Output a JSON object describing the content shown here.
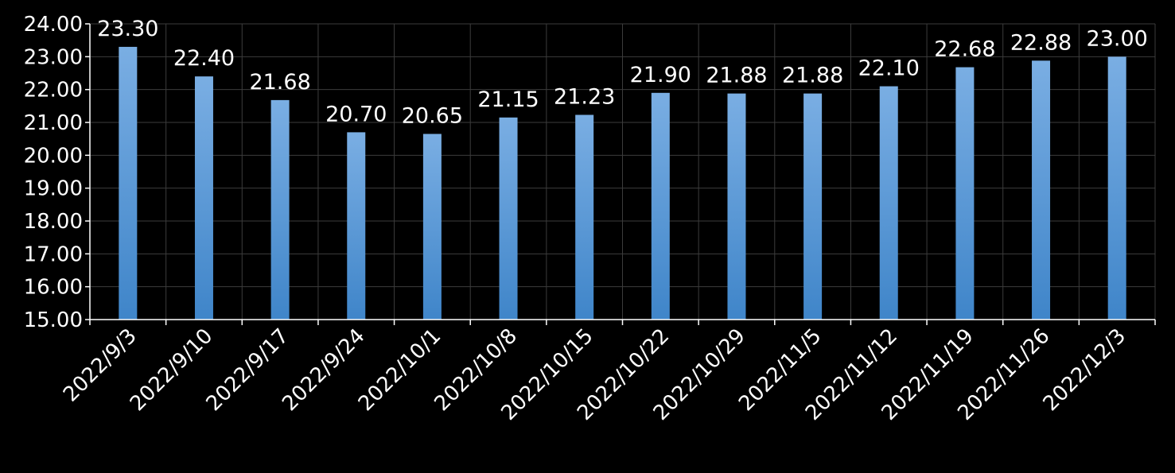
{
  "chart_data": {
    "type": "bar",
    "categories": [
      "2022/9/3",
      "2022/9/10",
      "2022/9/17",
      "2022/9/24",
      "2022/10/1",
      "2022/10/8",
      "2022/10/15",
      "2022/10/22",
      "2022/10/29",
      "2022/11/5",
      "2022/11/12",
      "2022/11/19",
      "2022/11/26",
      "2022/12/3"
    ],
    "series": [
      {
        "values": [
          23.3,
          22.4,
          21.68,
          20.7,
          20.65,
          21.15,
          21.23,
          21.9,
          21.88,
          21.88,
          22.1,
          22.68,
          22.88,
          23.0
        ],
        "labels": [
          "23.30",
          "22.40",
          "21.68",
          "20.70",
          "20.65",
          "21.15",
          "21.23",
          "21.90",
          "21.88",
          "21.88",
          "22.10",
          "22.68",
          "22.88",
          "23.00"
        ]
      }
    ],
    "ylim": [
      15,
      24
    ],
    "yticks": [
      "15.00",
      "16.00",
      "17.00",
      "18.00",
      "19.00",
      "20.00",
      "21.00",
      "22.00",
      "23.00",
      "24.00"
    ],
    "title": "",
    "xlabel": "",
    "ylabel": "",
    "grid": true,
    "legend": "none",
    "colors": {
      "background": "#000000",
      "bar_top": "#7aaee3",
      "bar_bottom": "#3f85c9",
      "grid": "#3c3c3c",
      "axis": "#ffffff",
      "text": "#ffffff"
    }
  }
}
